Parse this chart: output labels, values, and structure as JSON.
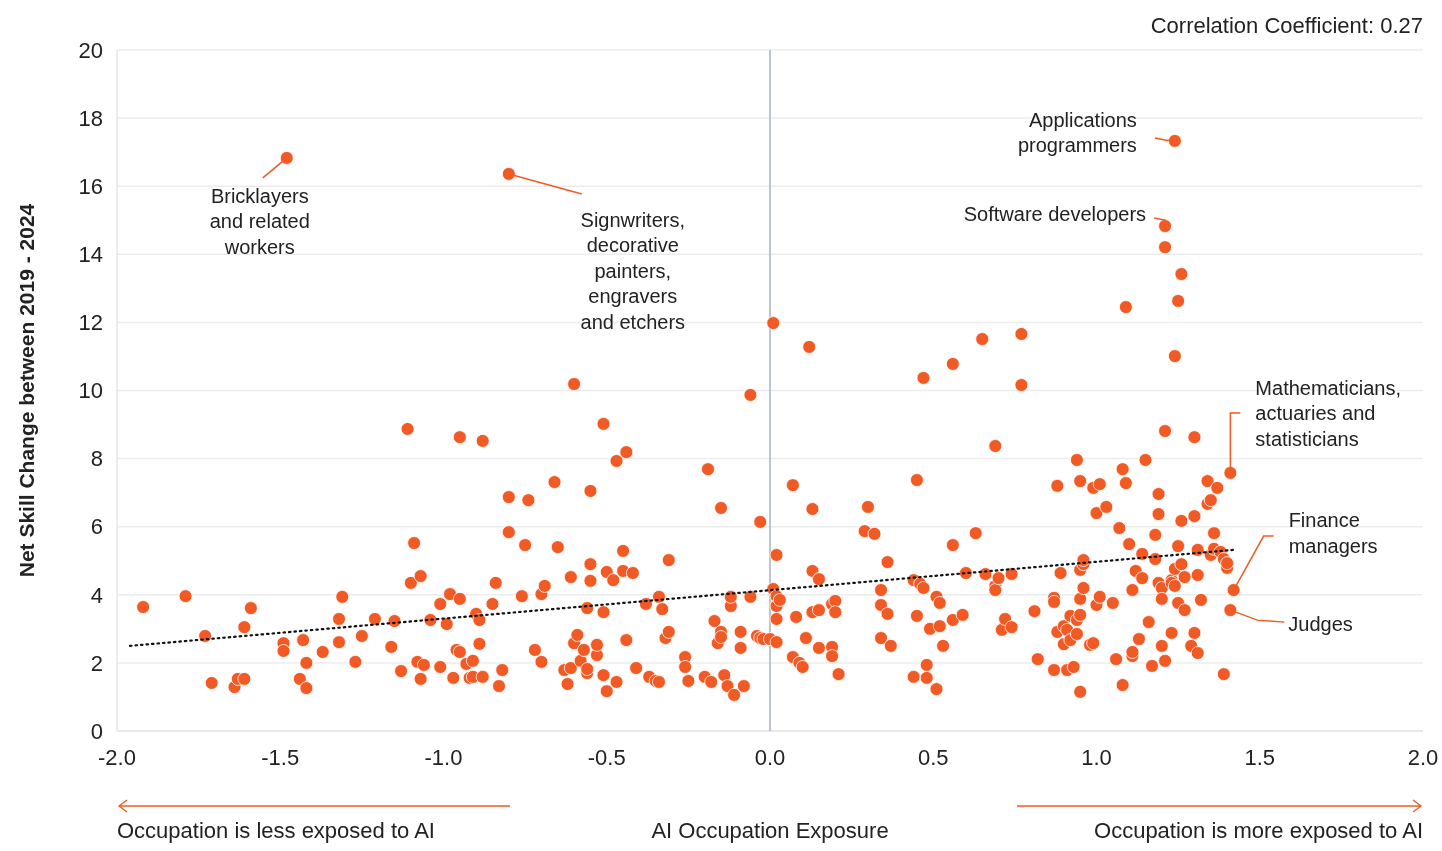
{
  "chart_data": {
    "type": "scatter",
    "xlabel": "AI Occupation Exposure",
    "ylabel": "Net Skill Change between 2019 - 2024",
    "xlim": [
      -2,
      2
    ],
    "ylim": [
      0,
      20
    ],
    "xticks": [
      {
        "value": -2,
        "label": "-2.0"
      },
      {
        "value": -1.5,
        "label": "-1.5"
      },
      {
        "value": -1,
        "label": "-1.0"
      },
      {
        "value": -0.5,
        "label": "-0.5"
      },
      {
        "value": 0,
        "label": "0.0"
      },
      {
        "value": 0.5,
        "label": "0.5"
      },
      {
        "value": 1,
        "label": "1.0"
      },
      {
        "value": 1.5,
        "label": "1.5"
      },
      {
        "value": 2,
        "label": "2.0"
      }
    ],
    "yticks": [
      0,
      2,
      4,
      6,
      8,
      10,
      12,
      14,
      16,
      18,
      20
    ],
    "grid": "y",
    "ref_lines": [
      {
        "axis": "x",
        "value": 0,
        "color": "#a9b1c2"
      }
    ],
    "annotations": [
      {
        "text": "Bricklayers and related workers",
        "x": -1.48,
        "y": 16.83
      },
      {
        "text": "Signwriters, decorative painters, engravers and etchers",
        "x": -0.8,
        "y": 16.36
      },
      {
        "text": "Applications programmers",
        "x": 1.24,
        "y": 17.33
      },
      {
        "text": "Software developers",
        "x": 1.21,
        "y": 14.83
      },
      {
        "text": "Mathematicians, actuaries and statisticians",
        "x": 1.41,
        "y": 7.58
      },
      {
        "text": "Finance managers",
        "x": 1.42,
        "y": 4.14
      },
      {
        "text": "Judges",
        "x": 1.41,
        "y": 3.55
      },
      "Correlation Coefficient: 0.27",
      "Occupation is less exposed to AI",
      "Occupation is more exposed to AI"
    ],
    "series": [
      {
        "color": "#f15a24",
        "marker": "circle",
        "x": [
          -1.92,
          -1.79,
          -1.73,
          -1.71,
          -1.64,
          -1.63,
          -1.61,
          -1.61,
          -1.59,
          -1.49,
          -1.49,
          -1.44,
          -1.43,
          -1.42,
          -1.42,
          -1.37,
          -1.32,
          -1.31,
          -1.32,
          -1.27,
          -1.25,
          -1.21,
          -1.16,
          -1.15,
          -1.13,
          -1.11,
          -1.1,
          -1.09,
          -1.08,
          -1.07,
          -1.07,
          -1.06,
          -1.04,
          -1.01,
          -1.01,
          -0.97,
          -0.98,
          -0.99,
          -0.96,
          -0.95,
          -0.95,
          -0.95,
          -0.93,
          -0.92,
          -0.91,
          -0.9,
          -0.91,
          -0.89,
          -0.89,
          -0.88,
          -0.88,
          -0.85,
          -0.84,
          -0.83,
          -0.82,
          -0.8,
          -0.8,
          -0.76,
          -0.75,
          -0.74,
          -0.72,
          -0.7,
          -0.7,
          -0.69,
          -0.66,
          -0.65,
          -0.63,
          -0.62,
          -0.61,
          -0.6,
          -0.61,
          -0.6,
          -0.59,
          -0.58,
          -0.57,
          -0.56,
          -0.56,
          -0.56,
          -0.55,
          -0.55,
          -0.55,
          -0.53,
          -0.53,
          -0.51,
          -0.51,
          -0.5,
          -0.51,
          -0.5,
          -0.48,
          -0.47,
          -0.47,
          -0.45,
          -0.45,
          -0.44,
          -0.44,
          -0.42,
          -0.41,
          -0.38,
          -0.37,
          -0.35,
          -0.34,
          -0.34,
          -0.33,
          -0.32,
          -0.31,
          -0.31,
          -0.26,
          -0.26,
          -0.25,
          -0.19,
          -0.2,
          -0.18,
          -0.17,
          -0.16,
          -0.15,
          -0.15,
          -0.15,
          -0.14,
          -0.13,
          -0.12,
          -0.12,
          -0.11,
          -0.09,
          -0.09,
          -0.08,
          -0.06,
          -0.06,
          -0.04,
          -0.03,
          -0.03,
          -0.02,
          0.0,
          0.01,
          0.02,
          0.01,
          0.02,
          0.02,
          0.03,
          0.02,
          0.02,
          0.07,
          0.07,
          0.08,
          0.09,
          0.1,
          0.11,
          0.12,
          0.13,
          0.13,
          0.13,
          0.15,
          0.15,
          0.15,
          0.19,
          0.2,
          0.19,
          0.19,
          0.2,
          0.21,
          0.29,
          0.3,
          0.32,
          0.34,
          0.34,
          0.34,
          0.36,
          0.36,
          0.37,
          0.44,
          0.44,
          0.45,
          0.45,
          0.46,
          0.47,
          0.47,
          0.48,
          0.48,
          0.49,
          0.51,
          0.51,
          0.52,
          0.52,
          0.53,
          0.56,
          0.56,
          0.56,
          0.59,
          0.6,
          0.63,
          0.65,
          0.66,
          0.69,
          0.69,
          0.69,
          0.7,
          0.71,
          0.72,
          0.74,
          0.74,
          0.77,
          0.77,
          0.81,
          0.82,
          0.87,
          0.87,
          0.87,
          0.88,
          0.88,
          0.89,
          0.9,
          0.9,
          0.91,
          0.91,
          0.92,
          0.92,
          0.93,
          0.94,
          0.94,
          0.94,
          0.95,
          0.95,
          0.95,
          0.95,
          0.95,
          0.96,
          0.96,
          0.96,
          0.98,
          0.99,
          0.99,
          1.0,
          1.0,
          1.01,
          1.01,
          1.03,
          1.06,
          1.05,
          1.07,
          1.08,
          1.08,
          1.09,
          1.09,
          1.1,
          1.11,
          1.11,
          1.11,
          1.12,
          1.13,
          1.14,
          1.14,
          1.15,
          1.16,
          1.17,
          1.18,
          1.18,
          1.19,
          1.19,
          1.19,
          1.2,
          1.2,
          1.2,
          1.21,
          1.21,
          1.21,
          1.21,
          1.23,
          1.23,
          1.24,
          1.24,
          1.23,
          1.24,
          1.24,
          1.25,
          1.25,
          1.25,
          1.26,
          1.26,
          1.27,
          1.26,
          1.27,
          1.29,
          1.3,
          1.3,
          1.3,
          1.31,
          1.31,
          1.31,
          1.32,
          1.34,
          1.34,
          1.35,
          1.35,
          1.36,
          1.36,
          1.37,
          1.38,
          1.39,
          1.39,
          1.4,
          1.4,
          1.41,
          1.42,
          1.41,
          -1.48,
          -0.8
        ],
        "values": [
          3.64,
          3.96,
          2.79,
          1.41,
          1.29,
          1.53,
          1.53,
          3.05,
          3.61,
          2.58,
          2.35,
          1.53,
          2.67,
          2.0,
          1.26,
          2.32,
          2.61,
          3.94,
          3.29,
          2.03,
          2.79,
          3.29,
          2.47,
          3.23,
          1.76,
          8.87,
          4.35,
          5.52,
          2.03,
          1.53,
          4.55,
          1.94,
          3.26,
          3.73,
          1.88,
          1.56,
          4.02,
          3.14,
          2.38,
          8.63,
          3.88,
          2.32,
          1.97,
          1.56,
          2.06,
          3.44,
          1.59,
          3.26,
          2.56,
          8.52,
          1.59,
          3.73,
          4.35,
          1.32,
          1.79,
          6.87,
          5.84,
          3.96,
          5.46,
          6.78,
          2.38,
          4.02,
          2.03,
          4.26,
          7.31,
          5.4,
          1.79,
          1.38,
          4.52,
          10.19,
          1.85,
          2.58,
          2.82,
          2.06,
          2.38,
          1.7,
          1.82,
          3.61,
          4.41,
          7.05,
          4.9,
          2.23,
          2.53,
          3.49,
          9.02,
          4.67,
          1.64,
          1.17,
          4.43,
          1.44,
          7.93,
          5.29,
          4.7,
          8.19,
          2.67,
          4.64,
          1.85,
          3.73,
          1.59,
          1.47,
          1.44,
          3.94,
          3.58,
          2.73,
          2.91,
          5.02,
          2.17,
          1.88,
          1.47,
          7.69,
          1.59,
          1.44,
          3.23,
          2.58,
          6.55,
          2.91,
          2.76,
          1.64,
          1.32,
          3.67,
          3.94,
          1.06,
          2.91,
          2.44,
          1.32,
          9.87,
          3.94,
          2.79,
          6.14,
          2.73,
          2.7,
          2.7,
          11.98,
          5.17,
          4.17,
          3.96,
          3.67,
          3.85,
          3.29,
          2.61,
          7.22,
          2.17,
          3.35,
          2.0,
          1.88,
          2.73,
          11.28,
          6.52,
          3.49,
          4.7,
          2.44,
          3.55,
          4.46,
          3.73,
          3.82,
          2.47,
          2.2,
          3.49,
          1.67,
          5.87,
          6.58,
          5.79,
          4.14,
          3.7,
          2.73,
          3.44,
          4.96,
          2.5,
          1.59,
          4.43,
          7.37,
          3.38,
          4.32,
          4.2,
          10.37,
          1.94,
          1.56,
          3.0,
          1.23,
          3.94,
          3.08,
          3.76,
          2.5,
          5.46,
          3.26,
          10.78,
          3.41,
          4.64,
          5.81,
          11.51,
          4.61,
          4.26,
          4.14,
          8.37,
          4.49,
          2.97,
          3.29,
          3.05,
          4.61,
          10.16,
          11.66,
          3.52,
          2.11,
          1.79,
          3.91,
          3.79,
          2.91,
          7.2,
          4.64,
          2.55,
          3.08,
          1.79,
          2.97,
          3.38,
          2.67,
          1.88,
          2.85,
          3.26,
          7.96,
          4.73,
          3.88,
          3.41,
          7.34,
          1.15,
          4.9,
          5.02,
          4.2,
          2.53,
          7.14,
          2.58,
          6.4,
          3.7,
          3.94,
          7.25,
          6.58,
          2.11,
          3.76,
          5.96,
          7.69,
          1.35,
          7.28,
          12.45,
          5.49,
          2.2,
          2.32,
          4.14,
          4.7,
          2.7,
          5.2,
          4.49,
          7.96,
          3.2,
          1.91,
          5.05,
          5.76,
          6.96,
          6.37,
          4.35,
          4.2,
          2.5,
          3.88,
          14.21,
          8.81,
          14.83,
          2.06,
          4.43,
          4.35,
          4.26,
          4.76,
          2.88,
          17.33,
          11.01,
          5.43,
          3.76,
          12.63,
          13.42,
          4.9,
          4.52,
          6.17,
          3.55,
          2.5,
          8.63,
          2.88,
          6.31,
          4.58,
          2.29,
          5.32,
          3.85,
          6.67,
          7.34,
          5.17,
          6.78,
          5.81,
          5.35,
          7.14,
          5.26,
          1.67,
          5.05,
          4.79,
          4.93,
          7.58,
          4.14,
          3.55,
          16.83,
          16.36
        ]
      },
      {
        "type": "line",
        "color": "#111111",
        "marker": "none",
        "line_style": "dotted",
        "x": [
          -1.96,
          1.42
        ],
        "values": [
          2.5,
          5.32
        ]
      }
    ]
  }
}
